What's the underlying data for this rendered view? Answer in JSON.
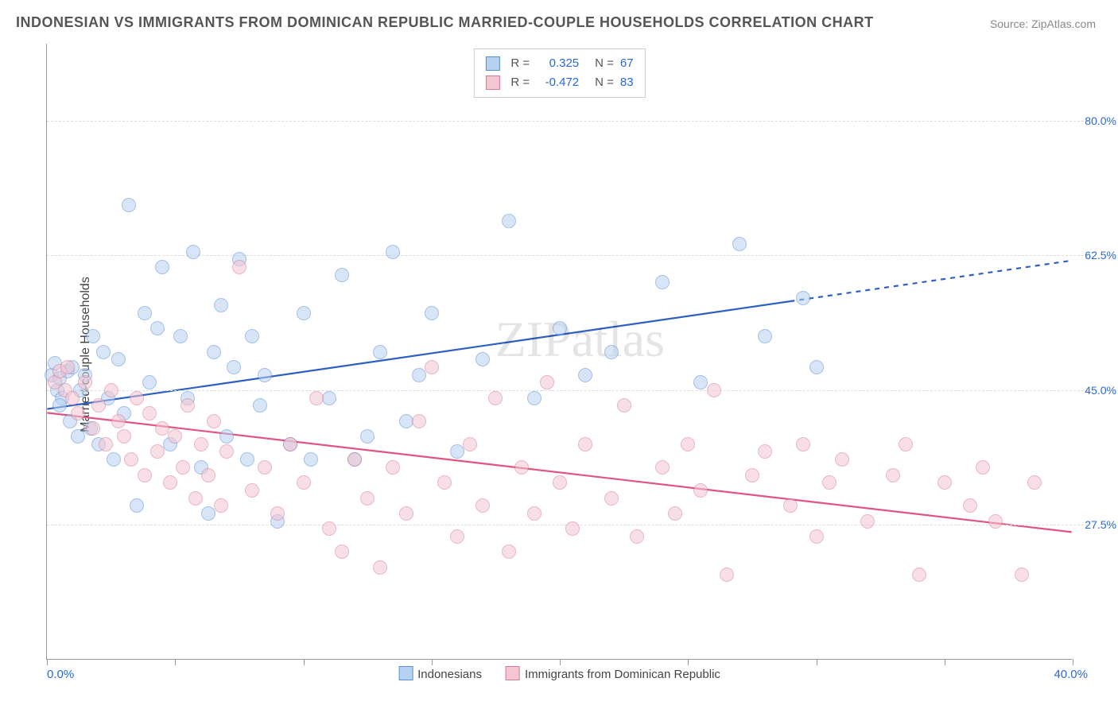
{
  "title": "INDONESIAN VS IMMIGRANTS FROM DOMINICAN REPUBLIC MARRIED-COUPLE HOUSEHOLDS CORRELATION CHART",
  "source": "Source: ZipAtlas.com",
  "ylabel": "Married-couple Households",
  "watermark": "ZIPatlas",
  "chart": {
    "type": "scatter",
    "xlim": [
      0,
      40
    ],
    "ylim": [
      10,
      90
    ],
    "x_tick_step": 5,
    "y_ticks": [
      27.5,
      45.0,
      62.5,
      80.0
    ],
    "y_tick_labels": [
      "27.5%",
      "45.0%",
      "62.5%",
      "80.0%"
    ],
    "x_lim_labels": [
      "0.0%",
      "40.0%"
    ],
    "background_color": "#ffffff",
    "grid_color": "#dddddd",
    "axis_color": "#999999",
    "marker_radius": 9,
    "marker_opacity": 0.55,
    "line_width": 2.2,
    "watermark_opacity": 0.1
  },
  "legend_top": {
    "rows": [
      {
        "swatch_fill": "#b7d1f0",
        "swatch_border": "#5a8ed8",
        "r_label": "R =",
        "r_value": "0.325",
        "n_label": "N =",
        "n_value": "67"
      },
      {
        "swatch_fill": "#f3c6d2",
        "swatch_border": "#d67a99",
        "r_label": "R =",
        "r_value": "-0.472",
        "n_label": "N =",
        "n_value": "83"
      }
    ]
  },
  "legend_bottom": {
    "items": [
      {
        "swatch_fill": "#b7d1f0",
        "swatch_border": "#5a8ed8",
        "label": "Indonesians"
      },
      {
        "swatch_fill": "#f3c6d2",
        "swatch_border": "#d67a99",
        "label": "Immigrants from Dominican Republic"
      }
    ]
  },
  "series": [
    {
      "name": "Indonesians",
      "fill": "#b7d1f0",
      "stroke": "#5a8ed8",
      "line_color": "#2d5fc4",
      "trend": {
        "x1": 0,
        "y1": 42.5,
        "x2_solid": 29,
        "y2_solid": 56.5,
        "x2_dash": 40,
        "y2_dash": 61.8
      },
      "points": [
        [
          0.2,
          47
        ],
        [
          0.3,
          48.5
        ],
        [
          0.4,
          45
        ],
        [
          0.5,
          46.5
        ],
        [
          0.6,
          44
        ],
        [
          0.8,
          47.5
        ],
        [
          0.5,
          43
        ],
        [
          0.9,
          41
        ],
        [
          1.0,
          48
        ],
        [
          1.2,
          39
        ],
        [
          1.3,
          45
        ],
        [
          1.5,
          47
        ],
        [
          1.7,
          40
        ],
        [
          1.8,
          52
        ],
        [
          2.0,
          38
        ],
        [
          2.2,
          50
        ],
        [
          2.4,
          44
        ],
        [
          2.6,
          36
        ],
        [
          2.8,
          49
        ],
        [
          3.0,
          42
        ],
        [
          3.2,
          69
        ],
        [
          3.5,
          30
        ],
        [
          3.8,
          55
        ],
        [
          4.0,
          46
        ],
        [
          4.3,
          53
        ],
        [
          4.5,
          61
        ],
        [
          4.8,
          38
        ],
        [
          5.2,
          52
        ],
        [
          5.5,
          44
        ],
        [
          5.7,
          63
        ],
        [
          6.0,
          35
        ],
        [
          6.3,
          29
        ],
        [
          6.5,
          50
        ],
        [
          6.8,
          56
        ],
        [
          7.0,
          39
        ],
        [
          7.3,
          48
        ],
        [
          7.5,
          62
        ],
        [
          7.8,
          36
        ],
        [
          8.0,
          52
        ],
        [
          8.3,
          43
        ],
        [
          8.5,
          47
        ],
        [
          9.0,
          28
        ],
        [
          9.5,
          38
        ],
        [
          10.0,
          55
        ],
        [
          10.3,
          36
        ],
        [
          11.0,
          44
        ],
        [
          11.5,
          60
        ],
        [
          12.0,
          36
        ],
        [
          12.5,
          39
        ],
        [
          13.0,
          50
        ],
        [
          13.5,
          63
        ],
        [
          14.0,
          41
        ],
        [
          14.5,
          47
        ],
        [
          15.0,
          55
        ],
        [
          16.0,
          37
        ],
        [
          17.0,
          49
        ],
        [
          18.0,
          67
        ],
        [
          19.0,
          44
        ],
        [
          20.0,
          53
        ],
        [
          21.0,
          47
        ],
        [
          22.0,
          50
        ],
        [
          24.0,
          59
        ],
        [
          25.5,
          46
        ],
        [
          27.0,
          64
        ],
        [
          28.0,
          52
        ],
        [
          29.5,
          57
        ],
        [
          30.0,
          48
        ]
      ]
    },
    {
      "name": "Immigrants from Dominican Republic",
      "fill": "#f3c6d2",
      "stroke": "#d67a99",
      "line_color": "#e2547e",
      "trend": {
        "x1": 0,
        "y1": 42.0,
        "x2_solid": 40,
        "y2_solid": 26.5,
        "x2_dash": 40,
        "y2_dash": 26.5
      },
      "points": [
        [
          0.3,
          46
        ],
        [
          0.5,
          47.5
        ],
        [
          0.7,
          45
        ],
        [
          0.8,
          48
        ],
        [
          1.0,
          44
        ],
        [
          1.2,
          42
        ],
        [
          1.5,
          46
        ],
        [
          1.8,
          40
        ],
        [
          2.0,
          43
        ],
        [
          2.3,
          38
        ],
        [
          2.5,
          45
        ],
        [
          2.8,
          41
        ],
        [
          3.0,
          39
        ],
        [
          3.3,
          36
        ],
        [
          3.5,
          44
        ],
        [
          3.8,
          34
        ],
        [
          4.0,
          42
        ],
        [
          4.3,
          37
        ],
        [
          4.5,
          40
        ],
        [
          4.8,
          33
        ],
        [
          5.0,
          39
        ],
        [
          5.3,
          35
        ],
        [
          5.5,
          43
        ],
        [
          5.8,
          31
        ],
        [
          6.0,
          38
        ],
        [
          6.3,
          34
        ],
        [
          6.5,
          41
        ],
        [
          6.8,
          30
        ],
        [
          7.0,
          37
        ],
        [
          7.5,
          61
        ],
        [
          8.0,
          32
        ],
        [
          8.5,
          35
        ],
        [
          9.0,
          29
        ],
        [
          9.5,
          38
        ],
        [
          10.0,
          33
        ],
        [
          10.5,
          44
        ],
        [
          11.0,
          27
        ],
        [
          11.5,
          24
        ],
        [
          12.0,
          36
        ],
        [
          12.5,
          31
        ],
        [
          13.0,
          22
        ],
        [
          13.5,
          35
        ],
        [
          14.0,
          29
        ],
        [
          14.5,
          41
        ],
        [
          15.0,
          48
        ],
        [
          15.5,
          33
        ],
        [
          16.0,
          26
        ],
        [
          16.5,
          38
        ],
        [
          17.0,
          30
        ],
        [
          17.5,
          44
        ],
        [
          18.0,
          24
        ],
        [
          18.5,
          35
        ],
        [
          19.0,
          29
        ],
        [
          19.5,
          46
        ],
        [
          20.0,
          33
        ],
        [
          20.5,
          27
        ],
        [
          21.0,
          38
        ],
        [
          22.0,
          31
        ],
        [
          22.5,
          43
        ],
        [
          23.0,
          26
        ],
        [
          24.0,
          35
        ],
        [
          24.5,
          29
        ],
        [
          25.0,
          38
        ],
        [
          25.5,
          32
        ],
        [
          26.0,
          45
        ],
        [
          26.5,
          21
        ],
        [
          27.5,
          34
        ],
        [
          28.0,
          37
        ],
        [
          29.0,
          30
        ],
        [
          29.5,
          38
        ],
        [
          30.0,
          26
        ],
        [
          30.5,
          33
        ],
        [
          31.0,
          36
        ],
        [
          32.0,
          28
        ],
        [
          33.0,
          34
        ],
        [
          33.5,
          38
        ],
        [
          34.0,
          21
        ],
        [
          35.0,
          33
        ],
        [
          36.0,
          30
        ],
        [
          36.5,
          35
        ],
        [
          37.0,
          28
        ],
        [
          38.0,
          21
        ],
        [
          38.5,
          33
        ]
      ]
    }
  ]
}
